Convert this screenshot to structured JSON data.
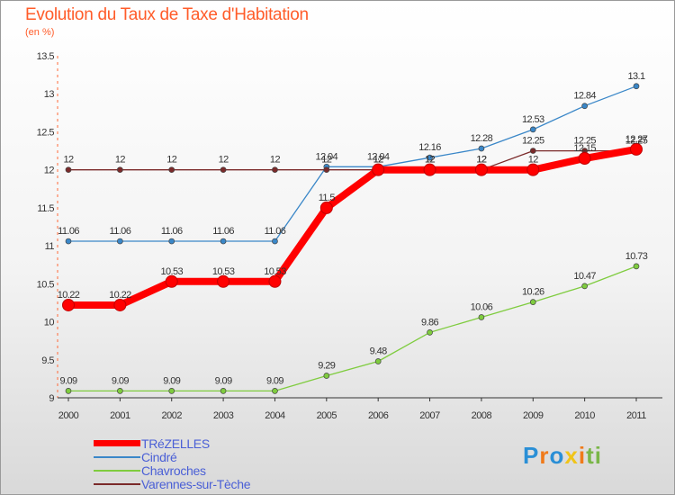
{
  "header": {
    "title": "Evolution du Taux de Taxe d'Habitation",
    "unit": "(en %)"
  },
  "logo": {
    "text": "Proxiti",
    "letters": [
      {
        "char": "P",
        "color": "#2a8fd6"
      },
      {
        "char": "r",
        "color": "#f07a1a"
      },
      {
        "char": "o",
        "color": "#2a8fd6"
      },
      {
        "char": "x",
        "color": "#f0c419"
      },
      {
        "char": "i",
        "color": "#f07a1a"
      },
      {
        "char": "t",
        "color": "#7ab648"
      },
      {
        "char": "i",
        "color": "#7ab648"
      }
    ]
  },
  "chart_data": {
    "type": "line",
    "title": "Evolution du Taux de Taxe d'Habitation",
    "ylabel": "(en %)",
    "xlabel": "",
    "x": [
      "2000",
      "2001",
      "2002",
      "2003",
      "2004",
      "2005",
      "2006",
      "2007",
      "2008",
      "2009",
      "2010",
      "2011"
    ],
    "ylim": [
      9,
      13.5
    ],
    "yticks": [
      "9",
      "9.5",
      "10",
      "10.5",
      "11",
      "11.5",
      "12",
      "12.5",
      "13",
      "13.5"
    ],
    "grid": false,
    "legend_position": "bottom-left",
    "series": [
      {
        "name": "TRéZELLES",
        "color": "#ff0000",
        "emphasis": true,
        "values": [
          10.22,
          10.22,
          10.53,
          10.53,
          10.53,
          11.5,
          12,
          12,
          12,
          12,
          12.15,
          12.27
        ],
        "labels": [
          "10.22",
          "10.22",
          "10.53",
          "10.53",
          "10.53",
          "11.5",
          "12",
          "12",
          "12",
          "12",
          "12.15",
          "12.27"
        ]
      },
      {
        "name": "Cindré",
        "color": "#3a87c8",
        "values": [
          11.06,
          11.06,
          11.06,
          11.06,
          11.06,
          12.04,
          12.04,
          12.16,
          12.28,
          12.53,
          12.84,
          13.1
        ],
        "labels": [
          "11.06",
          "11.06",
          "11.06",
          "11.06",
          "11.06",
          "12.04",
          "12.04",
          "12.16",
          "12.28",
          "12.53",
          "12.84",
          "13.1"
        ]
      },
      {
        "name": "Chavroches",
        "color": "#7fcc3f",
        "values": [
          9.09,
          9.09,
          9.09,
          9.09,
          9.09,
          9.29,
          9.48,
          9.86,
          10.06,
          10.26,
          10.47,
          10.73
        ],
        "labels": [
          "9.09",
          "9.09",
          "9.09",
          "9.09",
          "9.09",
          "9.29",
          "9.48",
          "9.86",
          "10.06",
          "10.26",
          "10.47",
          "10.73"
        ]
      },
      {
        "name": "Varennes-sur-Tèche",
        "color": "#7b2a2a",
        "values": [
          12,
          12,
          12,
          12,
          12,
          12,
          12,
          12,
          12,
          12.25,
          12.25,
          12.25
        ],
        "labels": [
          "12",
          "12",
          "12",
          "12",
          "12",
          "12",
          "12",
          "12",
          "12",
          "12.25",
          "12.25",
          "12.25"
        ]
      }
    ]
  }
}
